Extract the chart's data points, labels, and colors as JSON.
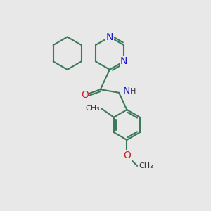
{
  "background_color": "#e8e8e8",
  "bond_color": "#3a7a5a",
  "bond_width": 1.5,
  "atom_colors": {
    "N": "#1a1acc",
    "O": "#cc2222",
    "C": "#000000"
  },
  "font_size_N": 10,
  "font_size_O": 10,
  "font_size_NH": 10,
  "font_size_label": 9,
  "figsize": [
    3.0,
    3.0
  ],
  "dpi": 100,
  "xlim": [
    0,
    10
  ],
  "ylim": [
    0,
    10
  ]
}
